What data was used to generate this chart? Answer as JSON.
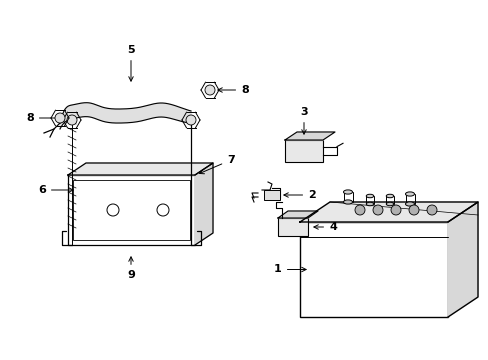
{
  "background_color": "#ffffff",
  "line_color": "#000000",
  "figsize": [
    4.89,
    3.6
  ],
  "dpi": 100,
  "xlim": [
    0,
    489
  ],
  "ylim": [
    0,
    360
  ]
}
